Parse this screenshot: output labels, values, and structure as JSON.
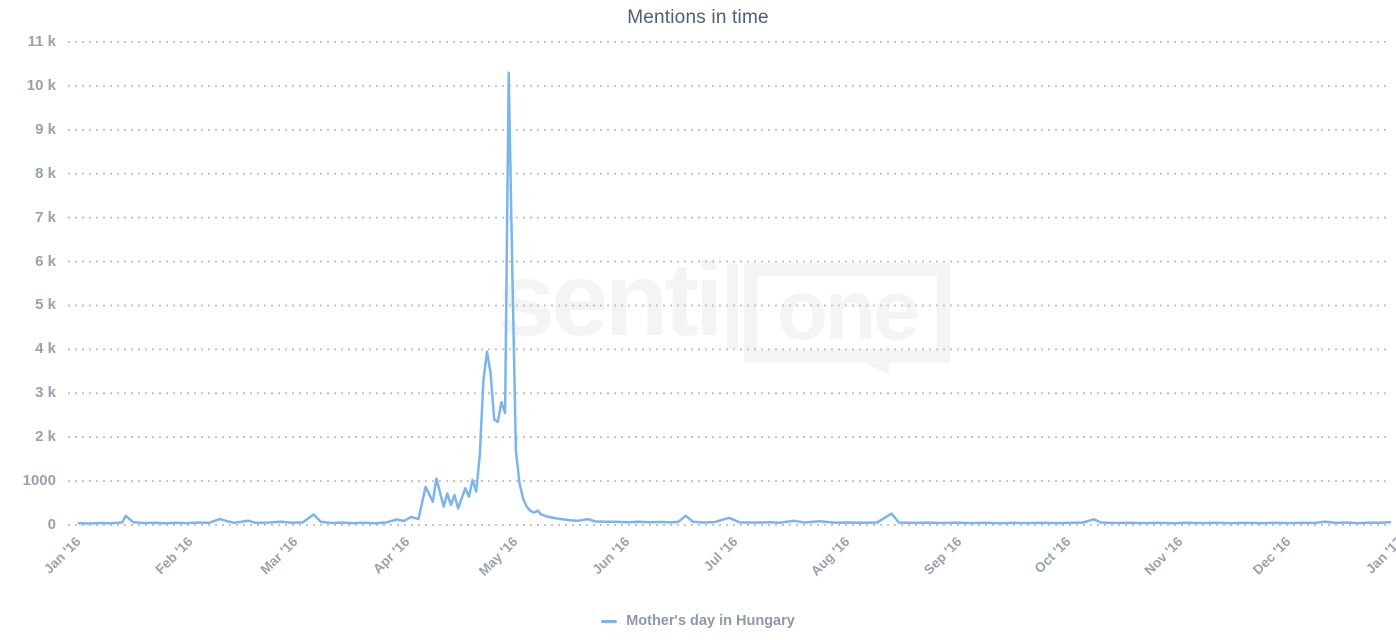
{
  "title": "Mentions in time",
  "watermark": {
    "part1": "senti",
    "part2": "one"
  },
  "legend": {
    "position": "bottom-center",
    "items": [
      {
        "label": "Mother's day in Hungary",
        "color": "#7cb5ec",
        "marker": "line-dash"
      }
    ]
  },
  "colors": {
    "background": "#ffffff",
    "series": "#7cb5ec",
    "title_text": "#4a6076",
    "axis_label_text": "#99a0ae",
    "gridline": "#c4c4c4",
    "legend_text": "#8c99ab",
    "watermark": "#f4f4f6"
  },
  "chart_data": {
    "type": "line",
    "title": "Mentions in time",
    "xlabel": "",
    "ylabel": "",
    "grid": {
      "horizontal": "dotted",
      "vertical": "none"
    },
    "legend_position": "bottom-center",
    "x_axis": {
      "type": "datetime",
      "range": [
        "2016-01-01",
        "2017-01-01"
      ],
      "tick_labels": [
        "Jan '16",
        "Feb '16",
        "Mar '16",
        "Apr '16",
        "May '16",
        "Jun '16",
        "Jul '16",
        "Aug '16",
        "Sep '16",
        "Oct '16",
        "Nov '16",
        "Dec '16",
        "Jan '17"
      ],
      "tick_dates": [
        "2016-01-01",
        "2016-02-01",
        "2016-03-01",
        "2016-04-01",
        "2016-05-01",
        "2016-06-01",
        "2016-07-01",
        "2016-08-01",
        "2016-09-01",
        "2016-10-01",
        "2016-11-01",
        "2016-12-01",
        "2017-01-01"
      ],
      "label_rotation_deg": -45
    },
    "y_axis": {
      "min": 0,
      "max": 11000,
      "tick_interval": 1000,
      "tick_labels_bottom_up": [
        "0",
        "1000",
        "2 k",
        "3 k",
        "4 k",
        "5 k",
        "6 k",
        "7 k",
        "8 k",
        "9 k",
        "10 k",
        "11 k"
      ]
    },
    "series": [
      {
        "name": "Mother's day in Hungary",
        "color": "#7cb5ec",
        "points": [
          [
            "2016-01-04",
            40
          ],
          [
            "2016-01-07",
            34
          ],
          [
            "2016-01-10",
            46
          ],
          [
            "2016-01-13",
            38
          ],
          [
            "2016-01-16",
            60
          ],
          [
            "2016-01-17",
            210
          ],
          [
            "2016-01-19",
            66
          ],
          [
            "2016-01-22",
            44
          ],
          [
            "2016-01-25",
            52
          ],
          [
            "2016-01-28",
            40
          ],
          [
            "2016-01-31",
            50
          ],
          [
            "2016-02-03",
            44
          ],
          [
            "2016-02-06",
            56
          ],
          [
            "2016-02-09",
            48
          ],
          [
            "2016-02-12",
            135
          ],
          [
            "2016-02-14",
            88
          ],
          [
            "2016-02-16",
            50
          ],
          [
            "2016-02-20",
            95
          ],
          [
            "2016-02-22",
            48
          ],
          [
            "2016-02-26",
            56
          ],
          [
            "2016-02-29",
            78
          ],
          [
            "2016-03-03",
            50
          ],
          [
            "2016-03-06",
            60
          ],
          [
            "2016-03-09",
            240
          ],
          [
            "2016-03-11",
            72
          ],
          [
            "2016-03-14",
            46
          ],
          [
            "2016-03-17",
            55
          ],
          [
            "2016-03-20",
            44
          ],
          [
            "2016-03-23",
            52
          ],
          [
            "2016-03-26",
            42
          ],
          [
            "2016-03-29",
            58
          ],
          [
            "2016-04-01",
            128
          ],
          [
            "2016-04-03",
            92
          ],
          [
            "2016-04-05",
            185
          ],
          [
            "2016-04-07",
            135
          ],
          [
            "2016-04-09",
            870
          ],
          [
            "2016-04-11",
            530
          ],
          [
            "2016-04-12",
            1060
          ],
          [
            "2016-04-14",
            420
          ],
          [
            "2016-04-15",
            720
          ],
          [
            "2016-04-16",
            455
          ],
          [
            "2016-04-17",
            680
          ],
          [
            "2016-04-18",
            380
          ],
          [
            "2016-04-20",
            835
          ],
          [
            "2016-04-21",
            645
          ],
          [
            "2016-04-22",
            1025
          ],
          [
            "2016-04-23",
            760
          ],
          [
            "2016-04-24",
            1600
          ],
          [
            "2016-04-25",
            3300
          ],
          [
            "2016-04-26",
            3950
          ],
          [
            "2016-04-27",
            3450
          ],
          [
            "2016-04-28",
            2400
          ],
          [
            "2016-04-29",
            2350
          ],
          [
            "2016-04-30",
            2800
          ],
          [
            "2016-05-01",
            2550
          ],
          [
            "2016-05-02",
            10300
          ],
          [
            "2016-05-03",
            5800
          ],
          [
            "2016-05-04",
            1700
          ],
          [
            "2016-05-05",
            950
          ],
          [
            "2016-05-06",
            600
          ],
          [
            "2016-05-07",
            420
          ],
          [
            "2016-05-08",
            320
          ],
          [
            "2016-05-09",
            280
          ],
          [
            "2016-05-10",
            330
          ],
          [
            "2016-05-11",
            240
          ],
          [
            "2016-05-13",
            185
          ],
          [
            "2016-05-16",
            140
          ],
          [
            "2016-05-19",
            110
          ],
          [
            "2016-05-21",
            95
          ],
          [
            "2016-05-24",
            135
          ],
          [
            "2016-05-26",
            80
          ],
          [
            "2016-05-29",
            72
          ],
          [
            "2016-06-01",
            76
          ],
          [
            "2016-06-04",
            64
          ],
          [
            "2016-06-07",
            72
          ],
          [
            "2016-06-10",
            62
          ],
          [
            "2016-06-13",
            70
          ],
          [
            "2016-06-16",
            60
          ],
          [
            "2016-06-18",
            74
          ],
          [
            "2016-06-20",
            212
          ],
          [
            "2016-06-22",
            72
          ],
          [
            "2016-06-25",
            58
          ],
          [
            "2016-06-28",
            66
          ],
          [
            "2016-07-02",
            165
          ],
          [
            "2016-07-05",
            60
          ],
          [
            "2016-07-09",
            54
          ],
          [
            "2016-07-13",
            62
          ],
          [
            "2016-07-16",
            50
          ],
          [
            "2016-07-20",
            95
          ],
          [
            "2016-07-23",
            56
          ],
          [
            "2016-07-27",
            85
          ],
          [
            "2016-07-31",
            54
          ],
          [
            "2016-08-04",
            58
          ],
          [
            "2016-08-08",
            50
          ],
          [
            "2016-08-12",
            56
          ],
          [
            "2016-08-16",
            260
          ],
          [
            "2016-08-18",
            56
          ],
          [
            "2016-08-22",
            48
          ],
          [
            "2016-08-26",
            54
          ],
          [
            "2016-08-30",
            46
          ],
          [
            "2016-09-03",
            54
          ],
          [
            "2016-09-07",
            44
          ],
          [
            "2016-09-11",
            52
          ],
          [
            "2016-09-15",
            42
          ],
          [
            "2016-09-19",
            50
          ],
          [
            "2016-09-23",
            44
          ],
          [
            "2016-09-27",
            52
          ],
          [
            "2016-10-01",
            44
          ],
          [
            "2016-10-05",
            50
          ],
          [
            "2016-10-08",
            56
          ],
          [
            "2016-10-11",
            130
          ],
          [
            "2016-10-13",
            58
          ],
          [
            "2016-10-17",
            46
          ],
          [
            "2016-10-21",
            52
          ],
          [
            "2016-10-25",
            44
          ],
          [
            "2016-10-29",
            50
          ],
          [
            "2016-11-02",
            42
          ],
          [
            "2016-11-06",
            50
          ],
          [
            "2016-11-10",
            44
          ],
          [
            "2016-11-14",
            52
          ],
          [
            "2016-11-18",
            42
          ],
          [
            "2016-11-22",
            50
          ],
          [
            "2016-11-26",
            42
          ],
          [
            "2016-11-30",
            50
          ],
          [
            "2016-12-04",
            44
          ],
          [
            "2016-12-08",
            52
          ],
          [
            "2016-12-11",
            46
          ],
          [
            "2016-12-14",
            78
          ],
          [
            "2016-12-17",
            48
          ],
          [
            "2016-12-20",
            56
          ],
          [
            "2016-12-23",
            44
          ],
          [
            "2016-12-26",
            54
          ],
          [
            "2016-12-29",
            50
          ],
          [
            "2017-01-01",
            62
          ]
        ]
      }
    ]
  }
}
